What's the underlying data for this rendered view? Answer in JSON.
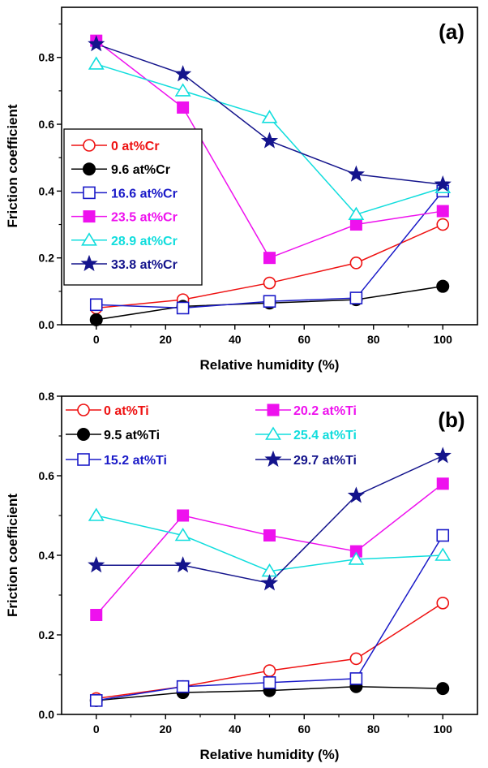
{
  "chart_data": [
    {
      "type": "line",
      "panel_label": "(a)",
      "xlabel": "Relative humidity (%)",
      "ylabel": "Friction coefficient",
      "xlim": [
        -10,
        110
      ],
      "ylim": [
        0,
        0.95
      ],
      "xticks": [
        0,
        20,
        40,
        60,
        80,
        100
      ],
      "yticks": [
        0.0,
        0.2,
        0.4,
        0.6,
        0.8
      ],
      "ytick_labels": [
        "0.0",
        "0.2",
        "0.4",
        "0.6",
        "0.8"
      ],
      "x": [
        0,
        25,
        50,
        75,
        100
      ],
      "legend_position": "middle-left",
      "series": [
        {
          "name": "0 at%Cr",
          "color": "#ee1111",
          "marker": "circle-open",
          "values": [
            0.05,
            0.075,
            0.125,
            0.185,
            0.3
          ]
        },
        {
          "name": "9.6 at%Cr",
          "color": "#000000",
          "marker": "circle-filled",
          "values": [
            0.015,
            0.055,
            0.065,
            0.075,
            0.115
          ]
        },
        {
          "name": "16.6 at%Cr",
          "color": "#1a1ac8",
          "marker": "square-open",
          "values": [
            0.06,
            0.05,
            0.07,
            0.08,
            0.4
          ]
        },
        {
          "name": "23.5 at%Cr",
          "color": "#ee11ee",
          "marker": "square-filled",
          "values": [
            0.85,
            0.65,
            0.2,
            0.3,
            0.34
          ]
        },
        {
          "name": "28.9 at%Cr",
          "color": "#11dddd",
          "marker": "triangle-open",
          "values": [
            0.78,
            0.7,
            0.62,
            0.33,
            0.41
          ]
        },
        {
          "name": "33.8 at%Cr",
          "color": "#14148c",
          "marker": "star-filled",
          "values": [
            0.84,
            0.75,
            0.55,
            0.45,
            0.42
          ]
        }
      ]
    },
    {
      "type": "line",
      "panel_label": "(b)",
      "xlabel": "Relative humidity (%)",
      "ylabel": "Friction coefficient",
      "xlim": [
        -10,
        110
      ],
      "ylim": [
        0,
        0.8
      ],
      "xticks": [
        0,
        20,
        40,
        60,
        80,
        100
      ],
      "yticks": [
        0.0,
        0.2,
        0.4,
        0.6,
        0.8
      ],
      "ytick_labels": [
        "0.0",
        "0.2",
        "0.4",
        "0.6",
        "0.8"
      ],
      "x": [
        0,
        25,
        50,
        75,
        100
      ],
      "legend_position": "top-left",
      "series": [
        {
          "name": "0 at%Ti",
          "color": "#ee1111",
          "marker": "circle-open",
          "values": [
            0.04,
            0.07,
            0.11,
            0.14,
            0.28
          ]
        },
        {
          "name": "9.5 at%Ti",
          "color": "#000000",
          "marker": "circle-filled",
          "values": [
            0.035,
            0.055,
            0.06,
            0.07,
            0.065
          ]
        },
        {
          "name": "15.2 at%Ti",
          "color": "#1a1ac8",
          "marker": "square-open",
          "values": [
            0.035,
            0.07,
            0.08,
            0.09,
            0.45
          ]
        },
        {
          "name": "20.2 at%Ti",
          "color": "#ee11ee",
          "marker": "square-filled",
          "values": [
            0.25,
            0.5,
            0.45,
            0.41,
            0.58
          ]
        },
        {
          "name": "25.4 at%Ti",
          "color": "#11dddd",
          "marker": "triangle-open",
          "values": [
            0.5,
            0.45,
            0.36,
            0.39,
            0.4
          ]
        },
        {
          "name": "29.7 at%Ti",
          "color": "#14148c",
          "marker": "star-filled",
          "values": [
            0.375,
            0.375,
            0.33,
            0.55,
            0.65
          ]
        }
      ]
    }
  ]
}
